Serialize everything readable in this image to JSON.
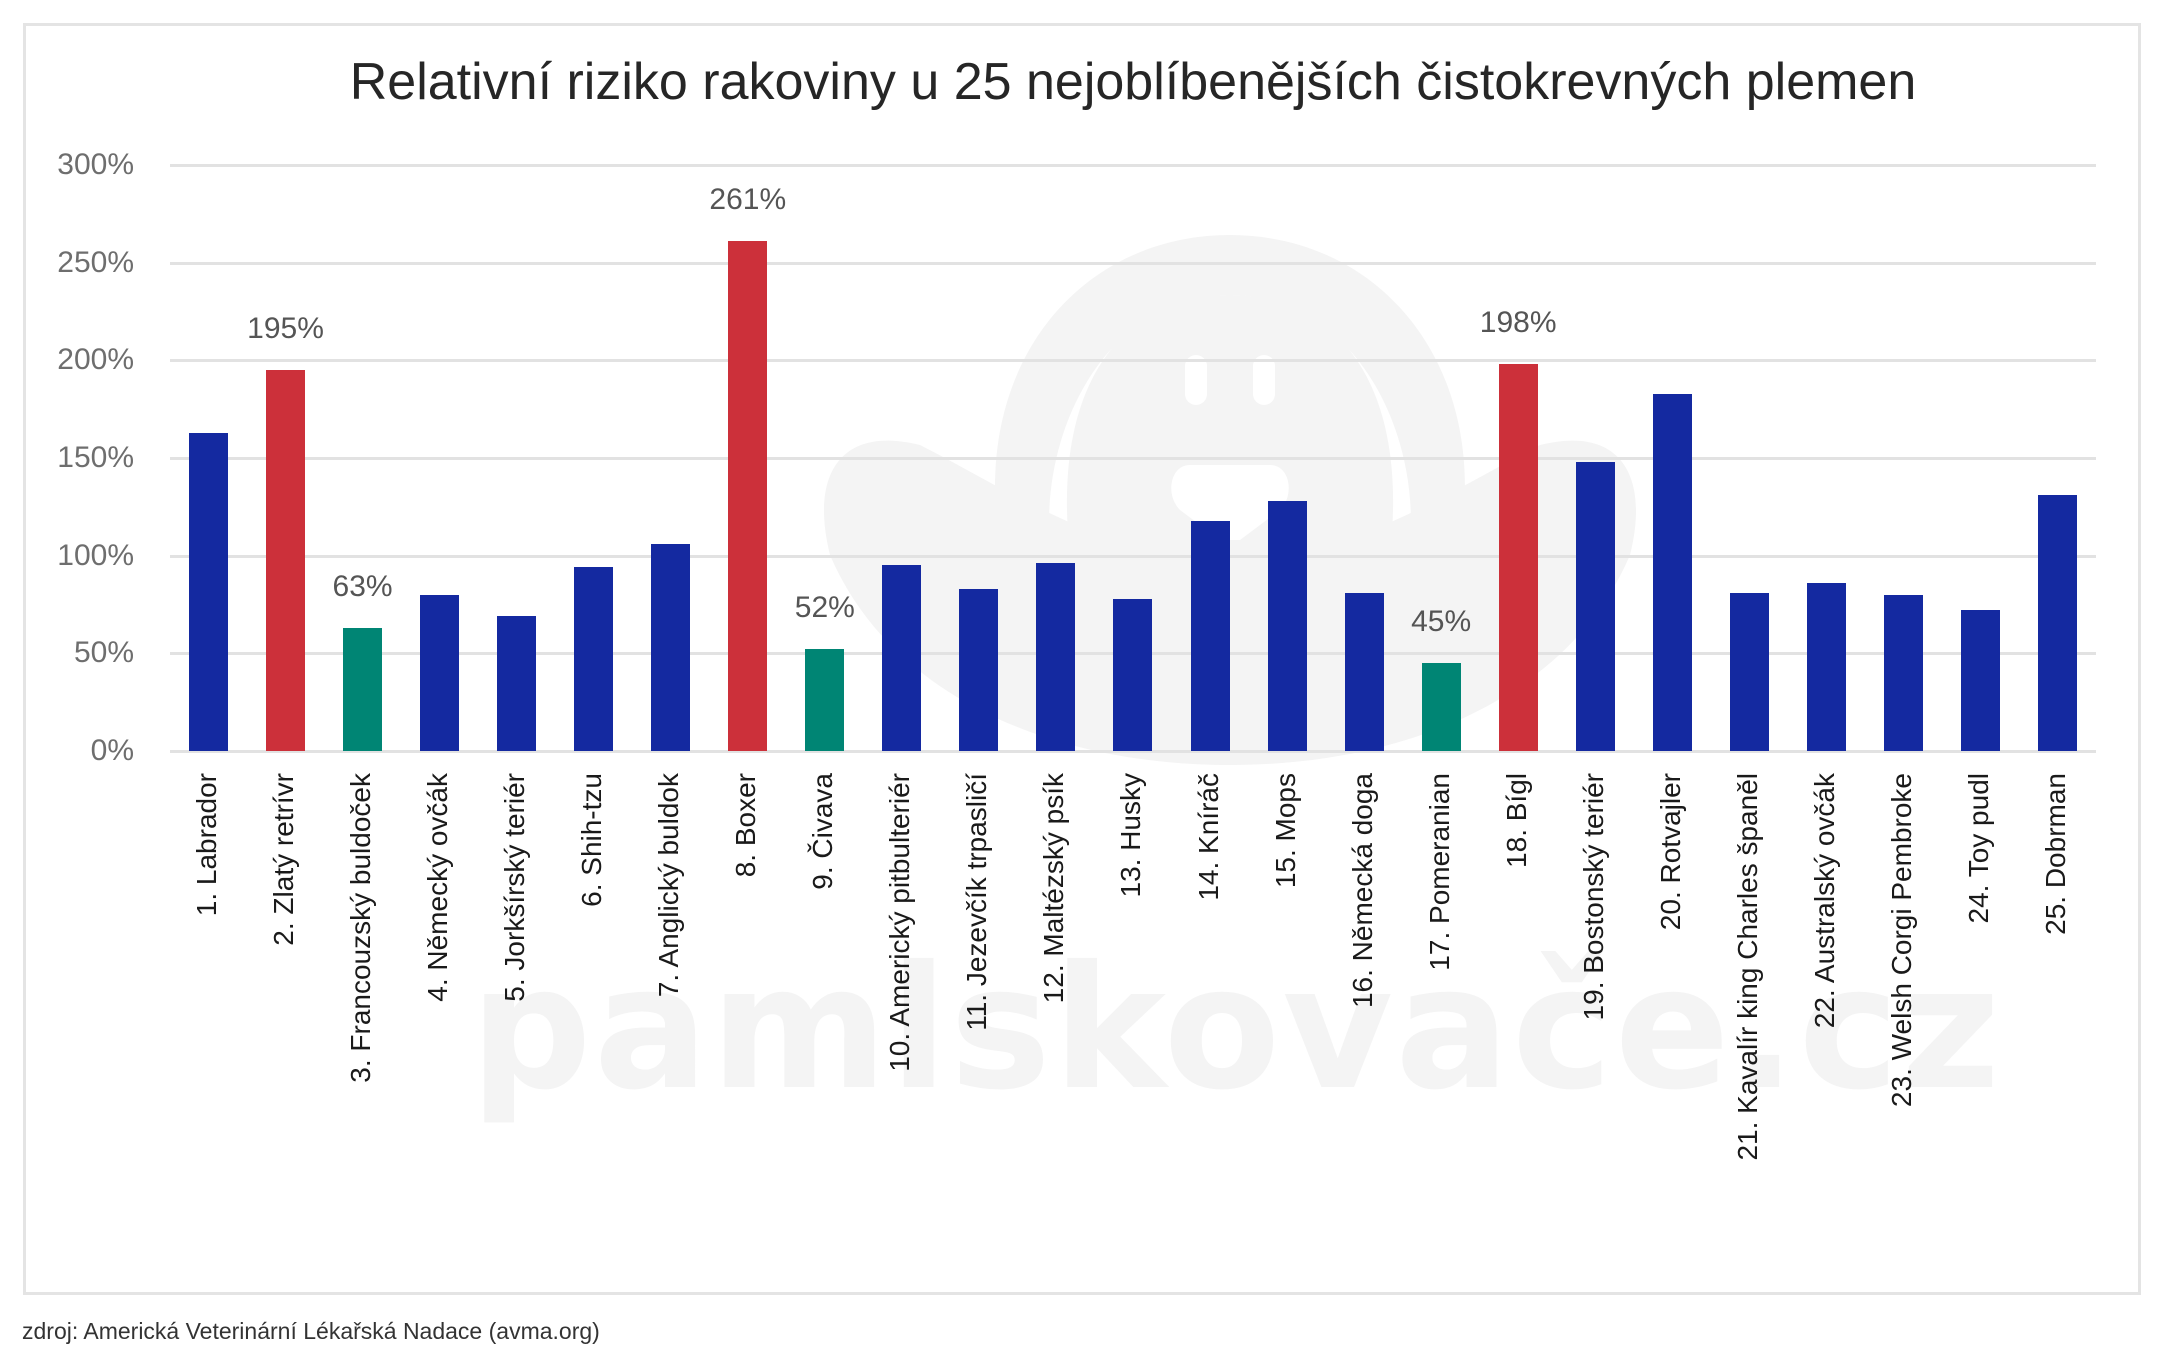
{
  "title": "Relativní riziko rakoviny u 25 nejoblíbenějších čistokrevných plemen",
  "footer": "zdroj: Americká Veterinární Lékařská Nadace (avma.org)",
  "watermark": "pamlskovače.cz",
  "colors": {
    "default": "#1429A0",
    "high": "#CC303A",
    "low": "#008574",
    "grid": "#E2E2E2",
    "frame": "#E4E4E4"
  },
  "yaxis": {
    "ticks": [
      "0%",
      "50%",
      "100%",
      "150%",
      "200%",
      "250%",
      "300%"
    ]
  },
  "chart_data": {
    "type": "bar",
    "title": "Relativní riziko rakoviny u 25 nejoblíbenějších čistokrevných plemen",
    "xlabel": "",
    "ylabel": "",
    "ylim": [
      0,
      300
    ],
    "y_format": "percent",
    "grid": true,
    "legend": null,
    "categories": [
      "1. Labrador",
      "2. Zlatý retrívr",
      "3. Francouzský buldoček",
      "4. Německý ovčák",
      "5. Jorkšírský teriér",
      "6. Shih-tzu",
      "7. Anglický buldok",
      "8. Boxer",
      "9. Čivava",
      "10. Americký pitbulteriér",
      "11. Jezevčík trpasličí",
      "12. Maltézský psík",
      "13. Husky",
      "14. Kníráč",
      "15. Mops",
      "16. Německá doga",
      "17. Pomeranian",
      "18. Bígl",
      "19. Bostonský teriér",
      "20. Rotvajler",
      "21. Kavalír king Charles španěl",
      "22. Australský ovčák",
      "23. Welsh Corgi Pembroke",
      "24. Toy pudl",
      "25. Dobrman"
    ],
    "values": [
      163,
      195,
      63,
      80,
      69,
      94,
      106,
      261,
      52,
      95,
      83,
      96,
      78,
      118,
      128,
      81,
      45,
      198,
      148,
      183,
      81,
      86,
      80,
      72,
      131
    ],
    "bar_groups": [
      "default",
      "high",
      "low",
      "default",
      "default",
      "default",
      "default",
      "high",
      "low",
      "default",
      "default",
      "default",
      "default",
      "default",
      "default",
      "default",
      "low",
      "high",
      "default",
      "default",
      "default",
      "default",
      "default",
      "default",
      "default"
    ],
    "data_labels": [
      {
        "index": 1,
        "text": "195%"
      },
      {
        "index": 2,
        "text": "63%"
      },
      {
        "index": 7,
        "text": "261%"
      },
      {
        "index": 8,
        "text": "52%"
      },
      {
        "index": 16,
        "text": "45%"
      },
      {
        "index": 17,
        "text": "198%"
      }
    ]
  }
}
